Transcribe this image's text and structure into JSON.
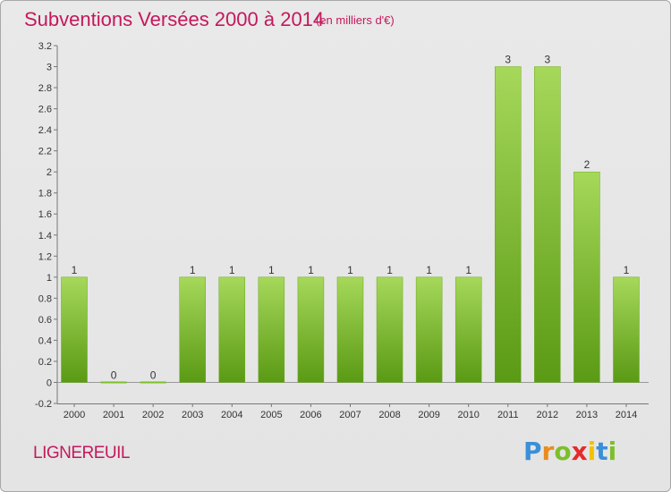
{
  "header": {
    "title": "Subventions Versées 2000 à 2014",
    "subtitle": "(en milliers d'€)"
  },
  "footer": {
    "commune": "LIGNEREUIL",
    "logo_letters": [
      "P",
      "r",
      "o",
      "x",
      "i",
      "t",
      "i"
    ],
    "logo_colors": [
      "#3a8fd8",
      "#e98c1f",
      "#7cbf2a",
      "#e52a2a",
      "#f2c200",
      "#3a8fd8",
      "#7cbf2a"
    ]
  },
  "chart_data": {
    "type": "bar",
    "title": "Subventions Versées 2000 à 2014",
    "subtitle": "(en milliers d'€)",
    "xlabel": "",
    "ylabel": "",
    "categories": [
      "2000",
      "2001",
      "2002",
      "2003",
      "2004",
      "2005",
      "2006",
      "2007",
      "2008",
      "2009",
      "2010",
      "2011",
      "2012",
      "2013",
      "2014"
    ],
    "values": [
      1,
      0,
      0,
      1,
      1,
      1,
      1,
      1,
      1,
      1,
      1,
      3,
      3,
      2,
      1
    ],
    "data_labels": [
      "1",
      "0",
      "0",
      "1",
      "1",
      "1",
      "1",
      "1",
      "1",
      "1",
      "1",
      "3",
      "3",
      "2",
      "1"
    ],
    "ylim": [
      -0.2,
      3.2
    ],
    "yticks": [
      -0.2,
      0,
      0.2,
      0.4,
      0.6,
      0.8,
      1,
      1.2,
      1.4,
      1.6,
      1.8,
      2,
      2.2,
      2.4,
      2.6,
      2.8,
      3,
      3.2
    ],
    "ytick_labels": [
      "-0.2",
      "0",
      "0.2",
      "0.4",
      "0.6",
      "0.8",
      "1",
      "1.2",
      "1.4",
      "1.6",
      "1.8",
      "2",
      "2.2",
      "2.4",
      "2.6",
      "2.8",
      "3",
      "3.2"
    ],
    "grid": false,
    "bar_color": "#7cbf2a",
    "bar_color_dark": "#5a9a14",
    "bar_color_light": "#a6d85a"
  }
}
